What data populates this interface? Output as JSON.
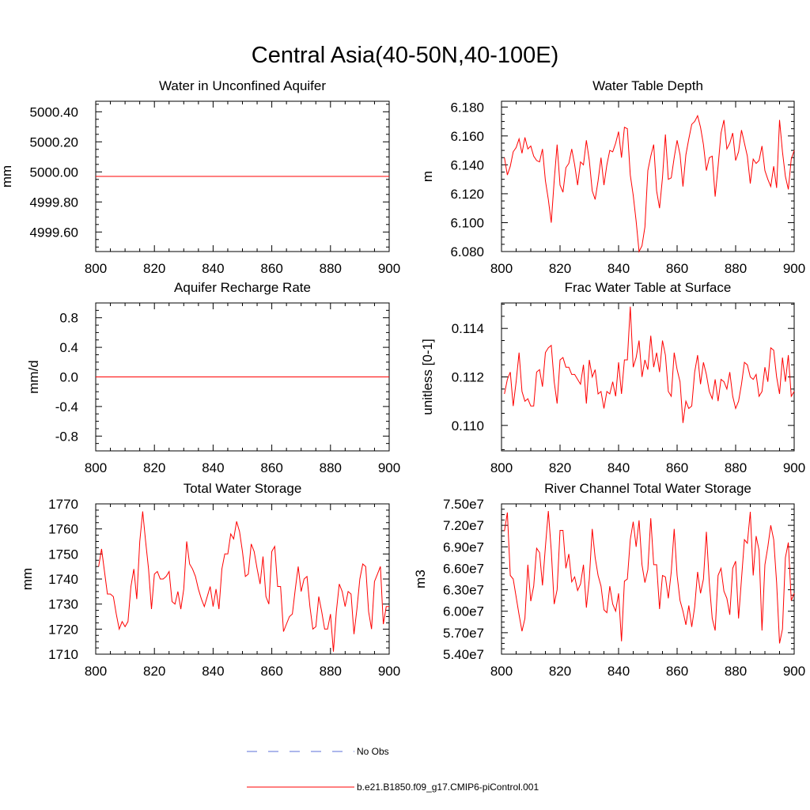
{
  "figure": {
    "title": "Central Asia(40-50N,40-100E)"
  },
  "legend": {
    "entries": [
      {
        "label": "No Obs",
        "color": "#5b6fd8",
        "style": "dashed"
      },
      {
        "label": "b.e21.B1850.f09_g17.CMIP6-piControl.001",
        "color": "#ff0000",
        "style": "solid"
      }
    ]
  },
  "chart_data": [
    {
      "type": "line",
      "title": "Water in Unconfined Aquifer",
      "xlabel": "",
      "ylabel": "mm",
      "xlim": [
        800,
        900
      ],
      "ylim": [
        4999.47,
        5000.47
      ],
      "xticks": [
        800,
        820,
        840,
        860,
        880,
        900
      ],
      "yticks": [
        4999.6,
        4999.8,
        5000.0,
        5000.2,
        5000.4
      ],
      "ytick_labels": [
        "4999.60",
        "4999.80",
        "5000.00",
        "5000.20",
        "5000.40"
      ],
      "series": [
        {
          "name": "b.e21.B1850.f09_g17.CMIP6-piControl.001",
          "color": "#ff0000",
          "constant": 4999.97
        }
      ]
    },
    {
      "type": "line",
      "title": "Water Table Depth",
      "xlabel": "",
      "ylabel": "m",
      "xlim": [
        800,
        900
      ],
      "ylim": [
        6.08,
        6.184
      ],
      "xticks": [
        800,
        820,
        840,
        860,
        880,
        900
      ],
      "yticks": [
        6.08,
        6.1,
        6.12,
        6.14,
        6.16,
        6.18
      ],
      "ytick_labels": [
        "6.080",
        "6.100",
        "6.120",
        "6.140",
        "6.160",
        "6.180"
      ],
      "series": [
        {
          "name": "b.e21.B1850.f09_g17.CMIP6-piControl.001",
          "color": "#ff0000",
          "x_start": 801,
          "values": [
            6.145,
            6.133,
            6.139,
            6.149,
            6.152,
            6.158,
            6.148,
            6.159,
            6.151,
            6.153,
            6.146,
            6.143,
            6.142,
            6.151,
            6.129,
            6.116,
            6.1,
            6.129,
            6.154,
            6.126,
            6.121,
            6.138,
            6.141,
            6.151,
            6.14,
            6.126,
            6.142,
            6.14,
            6.157,
            6.143,
            6.122,
            6.116,
            6.129,
            6.145,
            6.126,
            6.14,
            6.15,
            6.149,
            6.155,
            6.163,
            6.145,
            6.166,
            6.165,
            6.133,
            6.119,
            6.101,
            6.08,
            6.084,
            6.097,
            6.136,
            6.146,
            6.154,
            6.122,
            6.11,
            6.131,
            6.161,
            6.13,
            6.131,
            6.145,
            6.157,
            6.147,
            6.125,
            6.147,
            6.158,
            6.168,
            6.17,
            6.174,
            6.166,
            6.154,
            6.136,
            6.145,
            6.146,
            6.118,
            6.139,
            6.162,
            6.171,
            6.151,
            6.155,
            6.162,
            6.143,
            6.149,
            6.164,
            6.155,
            6.146,
            6.127,
            6.144,
            6.141,
            6.143,
            6.153,
            6.136,
            6.13,
            6.125,
            6.139,
            6.124,
            6.171,
            6.149,
            6.132,
            6.123,
            6.144,
            6.15
          ]
        }
      ]
    },
    {
      "type": "line",
      "title": "Aquifer Recharge Rate",
      "xlabel": "",
      "ylabel": "mm/d",
      "xlim": [
        800,
        900
      ],
      "ylim": [
        -1.0,
        1.0
      ],
      "xticks": [
        800,
        820,
        840,
        860,
        880,
        900
      ],
      "yticks": [
        -0.8,
        -0.4,
        0.0,
        0.4,
        0.8
      ],
      "ytick_labels": [
        "-0.8",
        "-0.4",
        "0.0",
        "0.4",
        "0.8"
      ],
      "series": [
        {
          "name": "b.e21.B1850.f09_g17.CMIP6-piControl.001",
          "color": "#ff0000",
          "constant": 0.0
        }
      ]
    },
    {
      "type": "line",
      "title": "Frac Water Table at Surface",
      "xlabel": "",
      "ylabel": "unitless [0-1]",
      "xlim": [
        800,
        900
      ],
      "ylim": [
        0.10895,
        0.11505
      ],
      "xticks": [
        800,
        820,
        840,
        860,
        880,
        900
      ],
      "yticks": [
        0.11,
        0.112,
        0.114
      ],
      "ytick_labels": [
        "0.110",
        "0.112",
        "0.114"
      ],
      "series": [
        {
          "name": "b.e21.B1850.f09_g17.CMIP6-piControl.001",
          "color": "#ff0000",
          "x_start": 801,
          "values": [
            0.1113,
            0.1119,
            0.1122,
            0.1108,
            0.1118,
            0.113,
            0.1114,
            0.111,
            0.1111,
            0.1108,
            0.1108,
            0.1122,
            0.1123,
            0.1116,
            0.113,
            0.1132,
            0.1133,
            0.1118,
            0.1109,
            0.1127,
            0.1128,
            0.1124,
            0.1124,
            0.1121,
            0.1121,
            0.1119,
            0.1117,
            0.1125,
            0.1109,
            0.1127,
            0.112,
            0.1123,
            0.1113,
            0.1114,
            0.1107,
            0.1114,
            0.1113,
            0.1118,
            0.1112,
            0.1126,
            0.1113,
            0.1127,
            0.1127,
            0.1149,
            0.1124,
            0.1128,
            0.1135,
            0.112,
            0.1127,
            0.1123,
            0.1137,
            0.1124,
            0.113,
            0.1122,
            0.1135,
            0.1129,
            0.1114,
            0.1112,
            0.113,
            0.1123,
            0.1118,
            0.1101,
            0.111,
            0.1107,
            0.1108,
            0.1122,
            0.1129,
            0.1117,
            0.1126,
            0.1121,
            0.1114,
            0.1111,
            0.1119,
            0.111,
            0.1119,
            0.1118,
            0.1115,
            0.1122,
            0.1112,
            0.1107,
            0.111,
            0.1117,
            0.1126,
            0.1125,
            0.112,
            0.1119,
            0.1121,
            0.1112,
            0.1114,
            0.1124,
            0.1118,
            0.1132,
            0.1131,
            0.112,
            0.1113,
            0.1128,
            0.1118,
            0.1129,
            0.1112,
            0.1114
          ]
        }
      ]
    },
    {
      "type": "line",
      "title": "Total Water Storage",
      "xlabel": "",
      "ylabel": "mm",
      "xlim": [
        800,
        900
      ],
      "ylim": [
        1710,
        1770
      ],
      "xticks": [
        800,
        820,
        840,
        860,
        880,
        900
      ],
      "yticks": [
        1710,
        1720,
        1730,
        1740,
        1750,
        1760,
        1770
      ],
      "ytick_labels": [
        "1710",
        "1720",
        "1730",
        "1740",
        "1750",
        "1760",
        "1770"
      ],
      "series": [
        {
          "name": "b.e21.B1850.f09_g17.CMIP6-piControl.001",
          "color": "#ff0000",
          "x_start": 801,
          "values": [
            1745,
            1752,
            1743,
            1734,
            1734,
            1733,
            1726,
            1720,
            1723,
            1721,
            1723,
            1737,
            1744,
            1732,
            1755,
            1767,
            1755,
            1744,
            1728,
            1742,
            1743,
            1740,
            1740,
            1741,
            1743,
            1731,
            1730,
            1735,
            1728,
            1736,
            1755,
            1746,
            1744,
            1741,
            1736,
            1732,
            1729,
            1733,
            1737,
            1729,
            1736,
            1728,
            1744,
            1750,
            1750,
            1758,
            1756,
            1763,
            1759,
            1751,
            1741,
            1742,
            1754,
            1751,
            1744,
            1738,
            1749,
            1733,
            1730,
            1751,
            1753,
            1737,
            1737,
            1719,
            1722,
            1725,
            1726,
            1736,
            1745,
            1735,
            1740,
            1741,
            1729,
            1720,
            1721,
            1733,
            1727,
            1720,
            1720,
            1726,
            1711,
            1727,
            1738,
            1735,
            1729,
            1735,
            1734,
            1718,
            1728,
            1740,
            1746,
            1745,
            1727,
            1720,
            1739,
            1742,
            1745,
            1722,
            1729,
            1729
          ]
        }
      ]
    },
    {
      "type": "line",
      "title": "River Channel Total Water Storage",
      "xlabel": "",
      "ylabel": "m3",
      "xlim": [
        800,
        900
      ],
      "ylim": [
        54000000,
        75000000
      ],
      "xticks": [
        800,
        820,
        840,
        860,
        880,
        900
      ],
      "yticks": [
        54000000,
        57000000,
        60000000,
        63000000,
        66000000,
        69000000,
        72000000,
        75000000
      ],
      "ytick_labels": [
        "5.40e7",
        "5.70e7",
        "6.00e7",
        "6.30e7",
        "6.60e7",
        "6.90e7",
        "7.20e7",
        "7.50e7"
      ],
      "series": [
        {
          "name": "b.e21.B1850.f09_g17.CMIP6-piControl.001",
          "color": "#ff0000",
          "x_start": 801,
          "values": [
            71200000,
            73800000,
            65000000,
            64500000,
            62000000,
            59500000,
            57200000,
            59000000,
            66500000,
            61400000,
            63500000,
            68800000,
            68200000,
            63600000,
            69000000,
            74000000,
            68500000,
            61000000,
            63000000,
            71300000,
            71300000,
            66000000,
            68000000,
            64100000,
            64800000,
            62900000,
            63800000,
            66500000,
            60500000,
            64500000,
            71500000,
            67500000,
            65000000,
            63500000,
            60200000,
            59800000,
            63500000,
            61000000,
            60000000,
            62500000,
            55800000,
            64200000,
            64500000,
            70000000,
            72500000,
            69000000,
            72700000,
            66500000,
            64000000,
            65800000,
            73000000,
            66500000,
            66500000,
            60300000,
            65000000,
            64800000,
            61800000,
            65500000,
            71500000,
            65000000,
            61500000,
            60000000,
            58100000,
            60800000,
            57800000,
            60600000,
            65500000,
            62500000,
            64500000,
            71100000,
            64000000,
            59000000,
            57300000,
            65000000,
            66000000,
            62800000,
            61800000,
            59500000,
            66000000,
            67000000,
            59000000,
            64500000,
            70000000,
            69500000,
            73900000,
            65000000,
            70500000,
            68500000,
            57300000,
            66500000,
            69000000,
            72000000,
            70000000,
            64000000,
            55500000,
            57500000,
            67500000,
            69600000,
            61500000,
            62500000
          ]
        }
      ]
    }
  ]
}
